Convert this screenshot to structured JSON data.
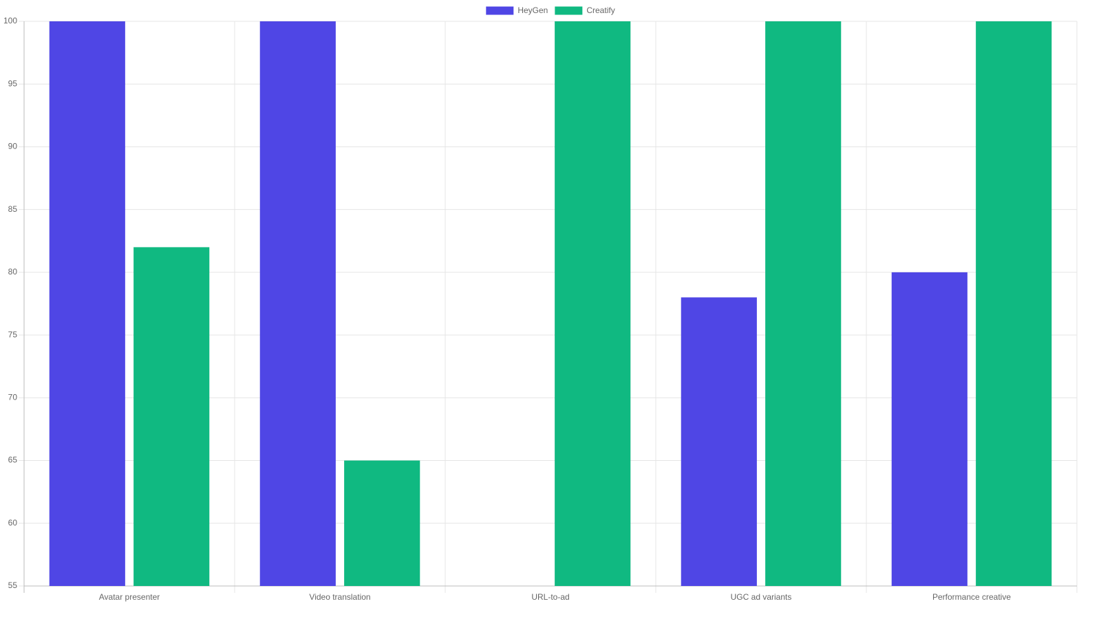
{
  "chart_data": {
    "type": "bar",
    "categories": [
      "Avatar presenter",
      "Video translation",
      "URL-to-ad",
      "UGC ad variants",
      "Performance creative"
    ],
    "series": [
      {
        "name": "HeyGen",
        "color": "#4f46e5",
        "values": [
          100,
          100,
          null,
          78,
          80
        ]
      },
      {
        "name": "Creatify",
        "color": "#10b981",
        "values": [
          82,
          65,
          100,
          100,
          100
        ]
      }
    ],
    "ylim": [
      55,
      100
    ],
    "yticks": [
      55,
      60,
      65,
      70,
      75,
      80,
      85,
      90,
      95,
      100
    ],
    "grid": true,
    "legend": "top"
  }
}
